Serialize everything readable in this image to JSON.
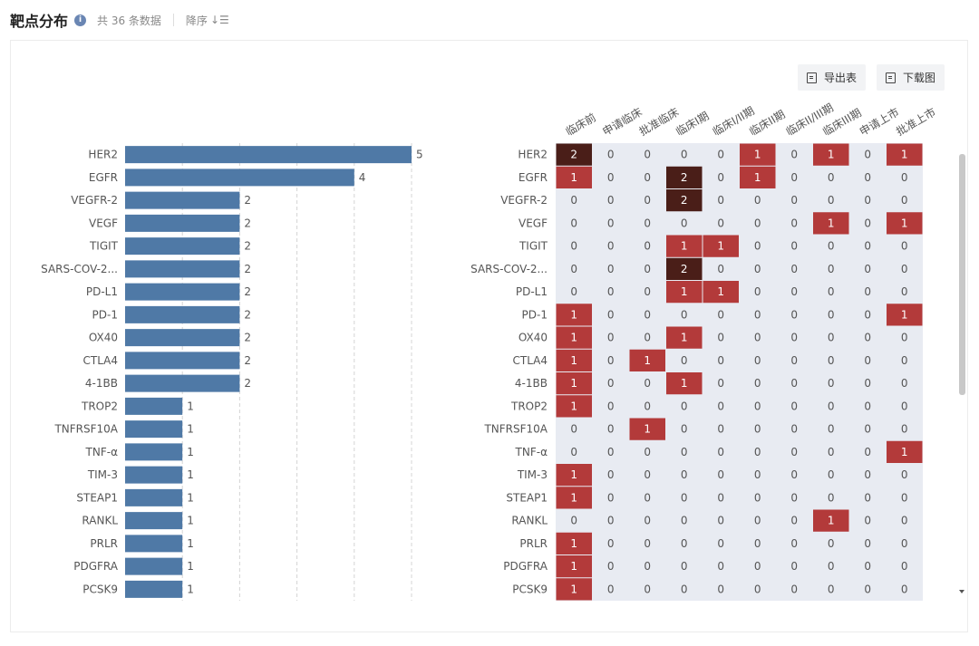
{
  "header": {
    "title": "靶点分布",
    "info_icon": "info-icon",
    "count_text": "共 36 条数据",
    "sort_label": "降序",
    "sort_icon": "sort-desc-icon"
  },
  "toolbar": {
    "export_label": "导出表",
    "export_icon": "export-table-icon",
    "download_label": "下载图",
    "download_icon": "download-image-icon"
  },
  "colors": {
    "bar": "#4f79a6",
    "heat_bg": "#e8ebf2",
    "heat_one": "#b33a3a",
    "heat_two": "#4a1e18"
  },
  "chart_data": [
    {
      "type": "bar",
      "orientation": "horizontal",
      "categories": [
        "HER2",
        "EGFR",
        "VEGFR-2",
        "VEGF",
        "TIGIT",
        "SARS-COV-2...",
        "PD-L1",
        "PD-1",
        "OX40",
        "CTLA4",
        "4-1BB",
        "TROP2",
        "TNFRSF10A",
        "TNF-α",
        "TIM-3",
        "STEAP1",
        "RANKL",
        "PRLR",
        "PDGFRA",
        "PCSK9"
      ],
      "values": [
        5,
        4,
        2,
        2,
        2,
        2,
        2,
        2,
        2,
        2,
        2,
        1,
        1,
        1,
        1,
        1,
        1,
        1,
        1,
        1
      ],
      "xlim": [
        0,
        5
      ],
      "grid": true
    },
    {
      "type": "heatmap",
      "x_categories": [
        "临床前",
        "申请临床",
        "批准临床",
        "临床I期",
        "临床I/II期",
        "临床II期",
        "临床II/III期",
        "临床III期",
        "申请上市",
        "批准上市"
      ],
      "y_categories": [
        "HER2",
        "EGFR",
        "VEGFR-2",
        "VEGF",
        "TIGIT",
        "SARS-COV-2...",
        "PD-L1",
        "PD-1",
        "OX40",
        "CTLA4",
        "4-1BB",
        "TROP2",
        "TNFRSF10A",
        "TNF-α",
        "TIM-3",
        "STEAP1",
        "RANKL",
        "PRLR",
        "PDGFRA",
        "PCSK9"
      ],
      "values": [
        [
          2,
          0,
          0,
          0,
          0,
          1,
          0,
          1,
          0,
          1
        ],
        [
          1,
          0,
          0,
          2,
          0,
          1,
          0,
          0,
          0,
          0
        ],
        [
          0,
          0,
          0,
          2,
          0,
          0,
          0,
          0,
          0,
          0
        ],
        [
          0,
          0,
          0,
          0,
          0,
          0,
          0,
          1,
          0,
          1
        ],
        [
          0,
          0,
          0,
          1,
          1,
          0,
          0,
          0,
          0,
          0
        ],
        [
          0,
          0,
          0,
          2,
          0,
          0,
          0,
          0,
          0,
          0
        ],
        [
          0,
          0,
          0,
          1,
          1,
          0,
          0,
          0,
          0,
          0
        ],
        [
          1,
          0,
          0,
          0,
          0,
          0,
          0,
          0,
          0,
          1
        ],
        [
          1,
          0,
          0,
          1,
          0,
          0,
          0,
          0,
          0,
          0
        ],
        [
          1,
          0,
          1,
          0,
          0,
          0,
          0,
          0,
          0,
          0
        ],
        [
          1,
          0,
          0,
          1,
          0,
          0,
          0,
          0,
          0,
          0
        ],
        [
          1,
          0,
          0,
          0,
          0,
          0,
          0,
          0,
          0,
          0
        ],
        [
          0,
          0,
          1,
          0,
          0,
          0,
          0,
          0,
          0,
          0
        ],
        [
          0,
          0,
          0,
          0,
          0,
          0,
          0,
          0,
          0,
          1
        ],
        [
          1,
          0,
          0,
          0,
          0,
          0,
          0,
          0,
          0,
          0
        ],
        [
          1,
          0,
          0,
          0,
          0,
          0,
          0,
          0,
          0,
          0
        ],
        [
          0,
          0,
          0,
          0,
          0,
          0,
          0,
          1,
          0,
          0
        ],
        [
          1,
          0,
          0,
          0,
          0,
          0,
          0,
          0,
          0,
          0
        ],
        [
          1,
          0,
          0,
          0,
          0,
          0,
          0,
          0,
          0,
          0
        ],
        [
          1,
          0,
          0,
          0,
          0,
          0,
          0,
          0,
          0,
          0
        ]
      ]
    }
  ]
}
